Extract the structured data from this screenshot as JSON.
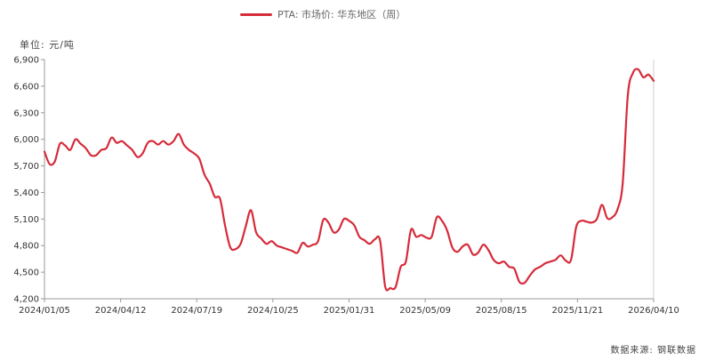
{
  "legend": {
    "label": "PTA: 市场价: 华东地区（周）"
  },
  "unit_label": "单位: 元/吨",
  "source_label": "数据来源: 钢联数据",
  "colors": {
    "series": "#d62b3a",
    "axis": "#999999",
    "text": "#333333"
  },
  "chart_data": {
    "type": "line",
    "title": "",
    "xlabel": "",
    "ylabel": "单位: 元/吨",
    "ylim": [
      4200,
      6900
    ],
    "y_ticks": [
      4200,
      4500,
      4800,
      5100,
      5400,
      5700,
      6000,
      6300,
      6600,
      6900
    ],
    "y_tick_labels": [
      "4,200",
      "4,500",
      "4,800",
      "5,100",
      "5,400",
      "5,700",
      "6,000",
      "6,300",
      "6,600",
      "6,900"
    ],
    "x_tick_labels": [
      "2024/01/05",
      "2024/04/12",
      "2024/07/19",
      "2024/10/25",
      "2025/01/31",
      "2025/05/09",
      "2025/08/15",
      "2025/11/21",
      "2026/04/10"
    ],
    "grid": false,
    "legend_position": "top-center",
    "series": [
      {
        "name": "PTA: 市场价: 华东地区（周）",
        "values": [
          5860,
          5720,
          5750,
          5950,
          5930,
          5880,
          6000,
          5950,
          5900,
          5820,
          5820,
          5880,
          5900,
          6020,
          5960,
          5980,
          5930,
          5880,
          5800,
          5840,
          5960,
          5980,
          5940,
          5980,
          5940,
          5980,
          6060,
          5940,
          5880,
          5840,
          5780,
          5600,
          5500,
          5350,
          5330,
          5020,
          4780,
          4760,
          4820,
          5020,
          5200,
          4950,
          4880,
          4820,
          4850,
          4800,
          4780,
          4760,
          4740,
          4720,
          4830,
          4790,
          4810,
          4850,
          5090,
          5060,
          4950,
          4980,
          5100,
          5080,
          5030,
          4900,
          4860,
          4820,
          4870,
          4860,
          4340,
          4320,
          4330,
          4560,
          4620,
          4980,
          4900,
          4920,
          4890,
          4900,
          5120,
          5080,
          4970,
          4780,
          4730,
          4790,
          4810,
          4700,
          4720,
          4810,
          4750,
          4640,
          4600,
          4620,
          4560,
          4540,
          4390,
          4380,
          4460,
          4530,
          4560,
          4600,
          4620,
          4640,
          4690,
          4630,
          4640,
          5010,
          5080,
          5070,
          5060,
          5100,
          5260,
          5110,
          5120,
          5210,
          5500,
          6500,
          6750,
          6790,
          6700,
          6730,
          6660
        ]
      }
    ]
  }
}
